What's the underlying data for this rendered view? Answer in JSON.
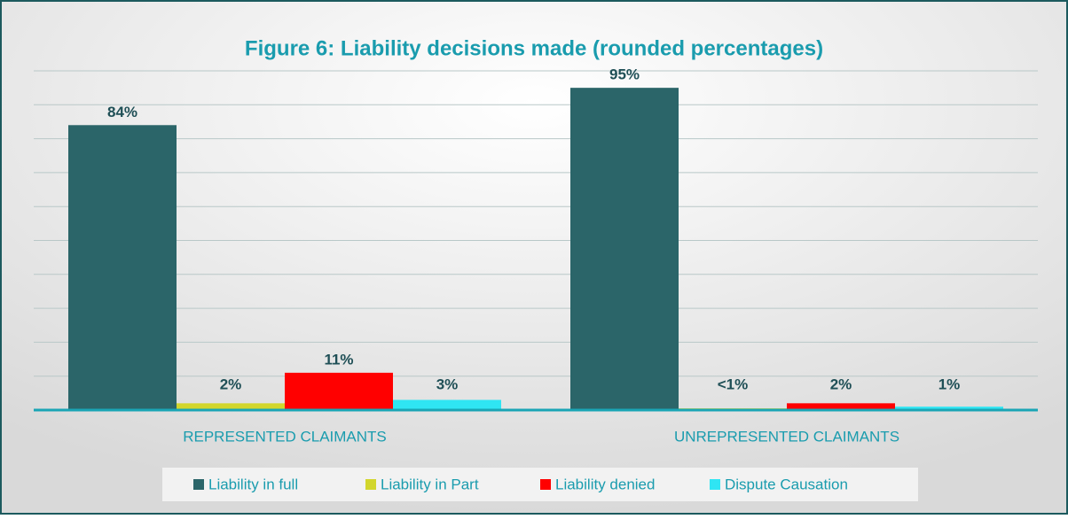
{
  "chart_data": {
    "type": "bar",
    "title": "Figure 6: Liability decisions made (rounded percentages)",
    "categories": [
      "REPRESENTED CLAIMANTS",
      "UNREPRESENTED CLAIMANTS"
    ],
    "series": [
      {
        "name": "Liability in full",
        "color": "#2b6569",
        "values": [
          84,
          95
        ],
        "value_labels": [
          "84%",
          "95%"
        ]
      },
      {
        "name": "Liability in Part",
        "color": "#d2d62c",
        "values": [
          2,
          0.5
        ],
        "value_labels": [
          "2%",
          "<1%"
        ]
      },
      {
        "name": "Liability denied",
        "color": "#ff0000",
        "values": [
          11,
          2
        ],
        "value_labels": [
          "11%",
          "2%"
        ]
      },
      {
        "name": "Dispute Causation",
        "color": "#2fe5f3",
        "values": [
          3,
          1
        ],
        "value_labels": [
          "3%",
          "1%"
        ]
      }
    ],
    "ylim": [
      0,
      100
    ],
    "grid": true,
    "legend": "bottom"
  }
}
